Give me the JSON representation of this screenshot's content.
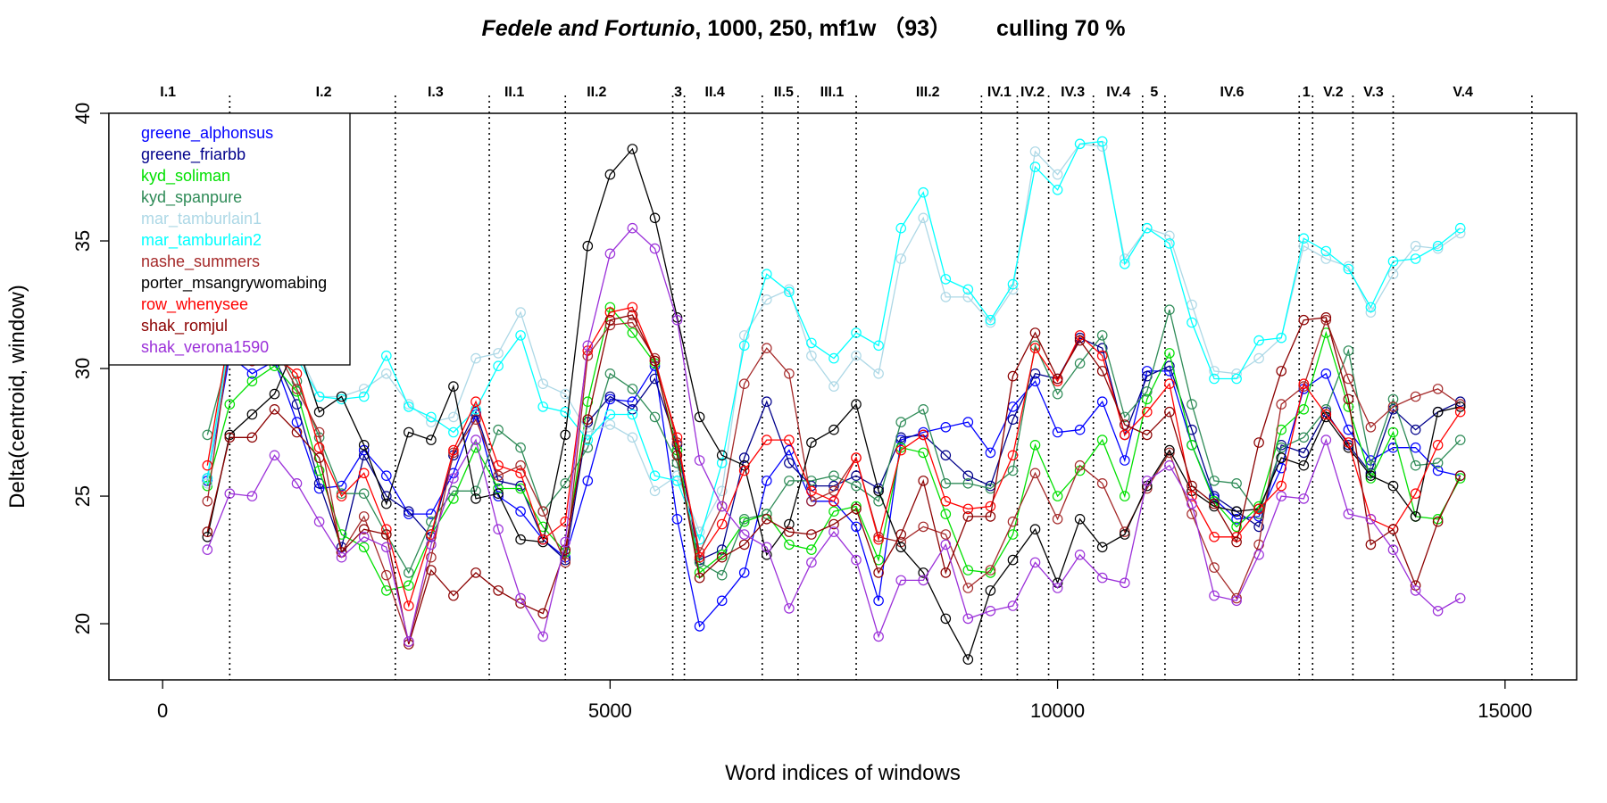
{
  "chart_data": {
    "type": "line",
    "title_play": "Fedele and Fortunio",
    "title_params": ", 1000, 250, mf1w （93）",
    "title_culling": "culling 70 %",
    "xlabel": "Word indices of windows",
    "ylabel": "Delta(centroid, window)",
    "xlim": [
      -600,
      15800
    ],
    "ylim": [
      17.8,
      40
    ],
    "xticks": [
      0,
      5000,
      10000,
      15000
    ],
    "xtick_labels": [
      "0",
      "5000",
      "10000",
      "15000"
    ],
    "yticks": [
      20,
      25,
      30,
      35,
      40
    ],
    "ytick_labels": [
      "20",
      "25",
      "30",
      "35",
      "40"
    ],
    "grid": false,
    "legend_position": "top-left",
    "scene_boundaries": [
      750,
      2600,
      3650,
      4500,
      5700,
      5830,
      6700,
      7100,
      7750,
      9150,
      9550,
      9900,
      10400,
      10950,
      11200,
      12700,
      12850,
      13300,
      13750,
      15300
    ],
    "scene_labels": [
      {
        "label": "I.1",
        "x": 60
      },
      {
        "label": "I.2",
        "x": 1800
      },
      {
        "label": "I.3",
        "x": 3050
      },
      {
        "label": "II.1",
        "x": 3930
      },
      {
        "label": "II.2",
        "x": 4850
      },
      {
        "label": "3",
        "x": 5760
      },
      {
        "label": "II.4",
        "x": 6170
      },
      {
        "label": "II.5",
        "x": 6940
      },
      {
        "label": "III.1",
        "x": 7480
      },
      {
        "label": "III.2",
        "x": 8550
      },
      {
        "label": "IV.1",
        "x": 9350
      },
      {
        "label": "IV.2",
        "x": 9720
      },
      {
        "label": "IV.3",
        "x": 10170
      },
      {
        "label": "IV.4",
        "x": 10680
      },
      {
        "label": "5",
        "x": 11080
      },
      {
        "label": "IV.6",
        "x": 11950
      },
      {
        "label": "1",
        "x": 12780
      },
      {
        "label": "V.2",
        "x": 13080
      },
      {
        "label": "V.3",
        "x": 13530
      },
      {
        "label": "V.4",
        "x": 14530
      }
    ],
    "x": [
      500,
      750,
      1000,
      1250,
      1500,
      1750,
      2000,
      2250,
      2500,
      2750,
      3000,
      3250,
      3500,
      3750,
      4000,
      4250,
      4500,
      4750,
      5000,
      5250,
      5500,
      5750,
      6000,
      6250,
      6500,
      6750,
      7000,
      7250,
      7500,
      7750,
      8000,
      8250,
      8500,
      8750,
      9000,
      9250,
      9500,
      9750,
      10000,
      10250,
      10500,
      10750,
      11000,
      11250,
      11500,
      11750,
      12000,
      12250,
      12500,
      12750,
      13000,
      13250,
      13500,
      13750,
      14000,
      14250,
      14500
    ],
    "series": [
      {
        "name": "greene_alphonsus",
        "color": "#0000ff",
        "values": [
          25.6,
          30.5,
          29.8,
          30.3,
          27.9,
          25.3,
          25.4,
          26.8,
          25.8,
          24.3,
          24.3,
          25.9,
          28.2,
          25.0,
          24.4,
          23.3,
          22.6,
          25.6,
          28.8,
          28.7,
          30.1,
          24.1,
          19.9,
          20.9,
          22.0,
          25.6,
          26.8,
          24.8,
          24.8,
          23.8,
          20.9,
          27.2,
          27.5,
          27.7,
          27.9,
          26.7,
          28.5,
          29.5,
          27.5,
          27.6,
          28.7,
          26.4,
          29.9,
          29.9,
          27.0,
          24.9,
          24.1,
          24.2,
          26.1,
          29.2,
          29.8,
          27.6,
          26.4,
          26.9,
          26.9,
          26.0,
          25.8
        ]
      },
      {
        "name": "greene_friarbb",
        "color": "#00008b",
        "values": [
          25.7,
          30.8,
          30.3,
          30.4,
          28.6,
          25.5,
          23.0,
          26.6,
          25.0,
          24.4,
          23.4,
          26.6,
          28.3,
          25.6,
          25.4,
          23.3,
          22.5,
          27.9,
          28.9,
          28.4,
          29.6,
          27.0,
          22.5,
          22.9,
          26.5,
          28.7,
          26.3,
          25.4,
          25.4,
          25.8,
          25.3,
          27.3,
          27.4,
          26.6,
          25.8,
          25.4,
          28.0,
          29.8,
          29.6,
          31.2,
          30.8,
          27.4,
          29.7,
          30.1,
          27.6,
          25.0,
          24.4,
          23.8,
          27.0,
          26.7,
          28.3,
          27.0,
          25.9,
          28.4,
          27.6,
          28.3,
          28.7
        ]
      },
      {
        "name": "kyd_soliman",
        "color": "#00e000",
        "values": [
          25.4,
          28.6,
          29.5,
          30.1,
          29.1,
          26.0,
          23.5,
          23.0,
          21.3,
          21.5,
          23.5,
          24.9,
          26.9,
          25.3,
          25.3,
          23.8,
          22.8,
          28.7,
          32.4,
          31.4,
          30.2,
          26.8,
          22.0,
          22.7,
          24.0,
          24.3,
          23.1,
          22.9,
          24.4,
          24.6,
          22.5,
          26.9,
          26.7,
          24.3,
          22.1,
          22.0,
          23.5,
          27.0,
          25.0,
          26.0,
          27.2,
          25.0,
          28.8,
          30.6,
          27.0,
          24.8,
          23.8,
          24.6,
          27.6,
          28.4,
          31.4,
          28.5,
          25.7,
          27.5,
          24.2,
          24.1,
          25.7
        ]
      },
      {
        "name": "kyd_spanpure",
        "color": "#2e8b57",
        "values": [
          27.4,
          30.7,
          30.4,
          30.9,
          29.5,
          27.3,
          25.1,
          25.1,
          23.5,
          22.0,
          24.0,
          25.2,
          25.2,
          27.6,
          26.9,
          24.4,
          25.5,
          26.9,
          29.8,
          29.2,
          28.1,
          26.3,
          22.4,
          21.9,
          24.1,
          24.3,
          25.6,
          25.6,
          25.8,
          25.4,
          24.8,
          27.9,
          28.4,
          25.5,
          25.5,
          25.3,
          26.0,
          30.9,
          29.0,
          30.2,
          31.3,
          28.1,
          29.1,
          32.3,
          28.6,
          25.6,
          25.5,
          24.3,
          26.9,
          27.3,
          28.4,
          30.7,
          26.2,
          28.8,
          26.2,
          26.3,
          27.2
        ]
      },
      {
        "name": "mar_tamburlain1",
        "color": "#add8e6",
        "values": [
          25.5,
          31.1,
          31.5,
          31.6,
          30.8,
          28.9,
          28.9,
          29.2,
          29.8,
          28.6,
          27.9,
          28.1,
          30.4,
          30.6,
          32.2,
          29.4,
          29.0,
          27.5,
          27.8,
          27.3,
          25.2,
          25.8,
          23.6,
          25.2,
          31.3,
          32.7,
          33.1,
          30.5,
          29.3,
          30.5,
          29.8,
          34.3,
          35.9,
          32.8,
          32.8,
          31.8,
          33.1,
          38.5,
          37.6,
          38.8,
          38.7,
          34.3,
          35.5,
          35.2,
          32.5,
          29.9,
          29.8,
          30.4,
          31.2,
          34.8,
          34.3,
          34.0,
          32.2,
          33.7,
          34.8,
          34.7,
          35.3
        ]
      },
      {
        "name": "mar_tamburlain2",
        "color": "#00ffff",
        "values": [
          25.7,
          31.3,
          31.6,
          31.6,
          30.4,
          28.9,
          28.8,
          28.9,
          30.5,
          28.5,
          28.1,
          27.5,
          28.4,
          30.1,
          31.3,
          28.5,
          28.3,
          27.2,
          28.2,
          28.2,
          25.8,
          25.6,
          23.3,
          26.3,
          30.9,
          33.7,
          33.0,
          31.0,
          30.4,
          31.4,
          30.9,
          35.5,
          36.9,
          33.5,
          33.1,
          31.9,
          33.3,
          37.9,
          37.0,
          38.8,
          38.9,
          34.1,
          35.5,
          34.9,
          31.8,
          29.6,
          29.6,
          31.1,
          31.2,
          35.1,
          34.6,
          33.9,
          32.4,
          34.2,
          34.3,
          34.8,
          35.5
        ]
      },
      {
        "name": "nashe_summers",
        "color": "#a52a2a",
        "values": [
          24.8,
          31.0,
          30.6,
          30.9,
          29.2,
          27.5,
          22.8,
          24.2,
          21.9,
          19.3,
          22.6,
          26.7,
          28.0,
          25.8,
          26.2,
          24.4,
          22.4,
          30.5,
          31.7,
          31.8,
          30.4,
          27.1,
          22.8,
          24.6,
          29.4,
          30.8,
          29.8,
          24.8,
          25.2,
          26.5,
          23.4,
          23.2,
          23.8,
          23.5,
          21.4,
          22.1,
          24.0,
          25.9,
          24.1,
          26.2,
          25.5,
          23.6,
          25.3,
          26.7,
          24.3,
          22.2,
          21.0,
          23.1,
          28.6,
          29.3,
          31.9,
          29.6,
          27.7,
          28.5,
          28.9,
          29.2,
          28.6
        ]
      },
      {
        "name": "porter_msangrywomabing",
        "color": "#000000",
        "values": [
          23.4,
          27.4,
          28.2,
          29.0,
          31.0,
          28.3,
          28.9,
          27.0,
          24.7,
          27.5,
          27.2,
          29.3,
          24.9,
          25.1,
          23.3,
          23.2,
          27.4,
          34.8,
          37.6,
          38.6,
          35.9,
          32.0,
          28.1,
          26.6,
          26.2,
          22.7,
          23.9,
          27.1,
          27.6,
          28.6,
          25.2,
          23.0,
          22.0,
          20.2,
          18.6,
          21.3,
          22.5,
          23.7,
          21.6,
          24.1,
          23.0,
          23.5,
          25.4,
          26.8,
          25.2,
          24.6,
          24.4,
          24.5,
          26.5,
          26.2,
          28.1,
          26.9,
          25.8,
          25.4,
          24.2,
          28.3,
          28.5
        ]
      },
      {
        "name": "row_whenysee",
        "color": "#ff0000",
        "values": [
          26.2,
          31.5,
          30.3,
          30.5,
          29.8,
          26.9,
          25.0,
          25.9,
          23.7,
          20.7,
          23.5,
          26.8,
          28.7,
          26.2,
          25.9,
          23.3,
          24.0,
          30.7,
          32.2,
          32.4,
          30.3,
          27.3,
          22.6,
          23.9,
          26.0,
          27.2,
          27.2,
          25.2,
          24.8,
          26.5,
          23.3,
          26.8,
          27.4,
          24.8,
          24.5,
          24.6,
          26.6,
          30.8,
          29.5,
          31.3,
          30.5,
          27.4,
          28.3,
          29.4,
          25.0,
          23.4,
          23.4,
          24.5,
          25.4,
          29.4,
          28.2,
          27.1,
          24.1,
          23.7,
          25.1,
          27.0,
          28.3
        ]
      },
      {
        "name": "shak_romjul",
        "color": "#8b0000",
        "values": [
          23.6,
          27.3,
          27.3,
          28.4,
          27.5,
          26.5,
          22.8,
          23.7,
          23.5,
          19.2,
          22.1,
          21.1,
          22.0,
          21.3,
          20.8,
          20.4,
          22.9,
          28.0,
          31.9,
          32.1,
          30.3,
          26.6,
          21.8,
          22.6,
          23.1,
          24.1,
          23.6,
          23.5,
          23.9,
          24.5,
          22.0,
          23.5,
          25.6,
          22.0,
          24.2,
          24.2,
          29.7,
          31.4,
          29.6,
          31.1,
          29.9,
          27.8,
          27.4,
          28.3,
          25.4,
          24.7,
          23.2,
          27.1,
          29.9,
          31.9,
          32.0,
          28.8,
          23.1,
          23.7,
          21.5,
          24.0,
          25.8
        ]
      },
      {
        "name": "shak_verona1590",
        "color": "#9b30d9",
        "values": [
          22.9,
          25.1,
          25.0,
          26.6,
          25.5,
          24.0,
          22.6,
          23.4,
          23.0,
          19.3,
          23.1,
          25.7,
          27.2,
          23.7,
          21.0,
          19.5,
          23.2,
          30.9,
          34.5,
          35.5,
          34.7,
          31.9,
          26.4,
          24.6,
          23.5,
          23.0,
          20.6,
          22.4,
          23.6,
          22.5,
          19.5,
          21.7,
          21.7,
          23.1,
          20.2,
          20.5,
          20.7,
          22.4,
          21.4,
          22.7,
          21.8,
          21.6,
          25.6,
          26.2,
          24.7,
          21.1,
          20.9,
          22.7,
          25.0,
          24.9,
          27.2,
          24.3,
          24.1,
          22.9,
          21.3,
          20.5,
          21.0
        ]
      }
    ]
  }
}
